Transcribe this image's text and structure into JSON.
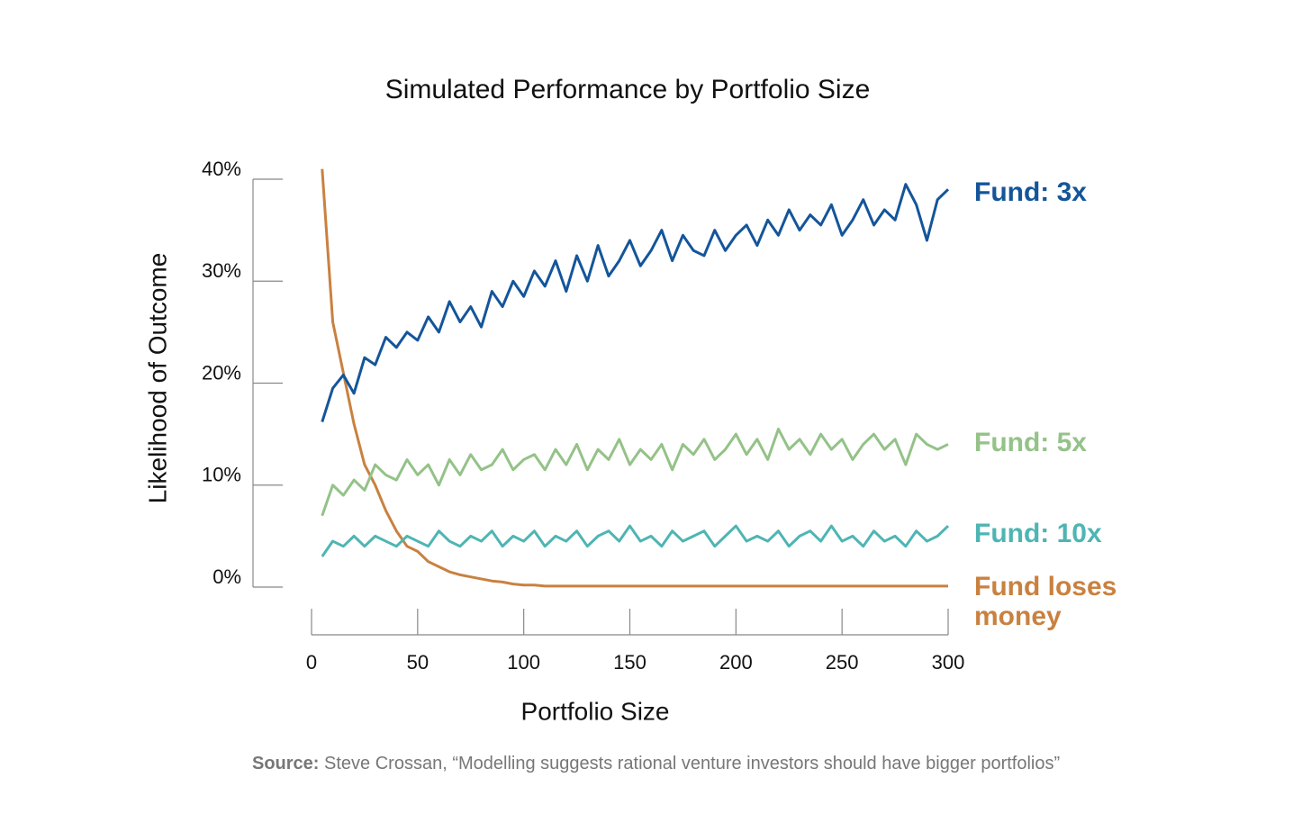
{
  "chart_data": {
    "type": "line",
    "title": "Simulated Performance by Portfolio Size",
    "x_label": "Portfolio Size",
    "y_label": "Likelihood of Outcome",
    "source_label": "Source:",
    "source": "Steve Crossan, “Modelling suggests rational venture investors should have bigger portfolios”",
    "xlim": [
      0,
      300
    ],
    "xticks": [
      0,
      50,
      100,
      150,
      200,
      250,
      300
    ],
    "ylim": [
      0,
      40
    ],
    "yticks": [
      {
        "value": 0,
        "label": "0%"
      },
      {
        "value": 10,
        "label": "10%"
      },
      {
        "value": 20,
        "label": "20%"
      },
      {
        "value": 30,
        "label": "30%"
      },
      {
        "value": 40,
        "label": "40%"
      }
    ],
    "x": [
      5,
      10,
      15,
      20,
      25,
      30,
      35,
      40,
      45,
      50,
      55,
      60,
      65,
      70,
      75,
      80,
      85,
      90,
      95,
      100,
      105,
      110,
      115,
      120,
      125,
      130,
      135,
      140,
      145,
      150,
      155,
      160,
      165,
      170,
      175,
      180,
      185,
      190,
      195,
      200,
      205,
      210,
      215,
      220,
      225,
      230,
      235,
      240,
      245,
      250,
      255,
      260,
      265,
      270,
      275,
      280,
      285,
      290,
      295,
      300
    ],
    "series": [
      {
        "name": "Fund: 3x",
        "color": "#14559a",
        "values": [
          16.2,
          19.5,
          20.8,
          19.0,
          22.5,
          21.8,
          24.5,
          23.5,
          25.0,
          24.2,
          26.5,
          25.0,
          28.0,
          26.0,
          27.5,
          25.5,
          29.0,
          27.5,
          30.0,
          28.5,
          31.0,
          29.5,
          32.0,
          29.0,
          32.5,
          30.0,
          33.5,
          30.5,
          32.0,
          34.0,
          31.5,
          33.0,
          35.0,
          32.0,
          34.5,
          33.0,
          32.5,
          35.0,
          33.0,
          34.5,
          35.5,
          33.5,
          36.0,
          34.5,
          37.0,
          35.0,
          36.5,
          35.5,
          37.5,
          34.5,
          36.0,
          38.0,
          35.5,
          37.0,
          36.0,
          39.5,
          37.5,
          34.0,
          38.0,
          39.0
        ]
      },
      {
        "name": "Fund: 5x",
        "color": "#94c288",
        "values": [
          7.0,
          10.0,
          9.0,
          10.5,
          9.5,
          12.0,
          11.0,
          10.5,
          12.5,
          11.0,
          12.0,
          10.0,
          12.5,
          11.0,
          13.0,
          11.5,
          12.0,
          13.5,
          11.5,
          12.5,
          13.0,
          11.5,
          13.5,
          12.0,
          14.0,
          11.5,
          13.5,
          12.5,
          14.5,
          12.0,
          13.5,
          12.5,
          14.0,
          11.5,
          14.0,
          13.0,
          14.5,
          12.5,
          13.5,
          15.0,
          13.0,
          14.5,
          12.5,
          15.5,
          13.5,
          14.5,
          13.0,
          15.0,
          13.5,
          14.5,
          12.5,
          14.0,
          15.0,
          13.5,
          14.5,
          12.0,
          15.0,
          14.0,
          13.5,
          14.0
        ]
      },
      {
        "name": "Fund: 10x",
        "color": "#4eb5b3",
        "values": [
          3.0,
          4.5,
          4.0,
          5.0,
          4.0,
          5.0,
          4.5,
          4.0,
          5.0,
          4.5,
          4.0,
          5.5,
          4.5,
          4.0,
          5.0,
          4.5,
          5.5,
          4.0,
          5.0,
          4.5,
          5.5,
          4.0,
          5.0,
          4.5,
          5.5,
          4.0,
          5.0,
          5.5,
          4.5,
          6.0,
          4.5,
          5.0,
          4.0,
          5.5,
          4.5,
          5.0,
          5.5,
          4.0,
          5.0,
          6.0,
          4.5,
          5.0,
          4.5,
          5.5,
          4.0,
          5.0,
          5.5,
          4.5,
          6.0,
          4.5,
          5.0,
          4.0,
          5.5,
          4.5,
          5.0,
          4.0,
          5.5,
          4.5,
          5.0,
          6.0
        ]
      },
      {
        "name": "Fund loses money",
        "color": "#c98140",
        "values": [
          41,
          26,
          21,
          16,
          12,
          10,
          7.5,
          5.5,
          4,
          3.5,
          2.5,
          2,
          1.5,
          1.2,
          1,
          0.8,
          0.6,
          0.5,
          0.3,
          0.2,
          0.2,
          0.1,
          0.1,
          0.1,
          0.1,
          0.1,
          0.1,
          0.1,
          0.1,
          0.1,
          0.1,
          0.1,
          0.1,
          0.1,
          0.1,
          0.1,
          0.1,
          0.1,
          0.1,
          0.1,
          0.1,
          0.1,
          0.1,
          0.1,
          0.1,
          0.1,
          0.1,
          0.1,
          0.1,
          0.1,
          0.1,
          0.1,
          0.1,
          0.1,
          0.1,
          0.1,
          0.1,
          0.1,
          0.1,
          0.1
        ]
      }
    ]
  }
}
